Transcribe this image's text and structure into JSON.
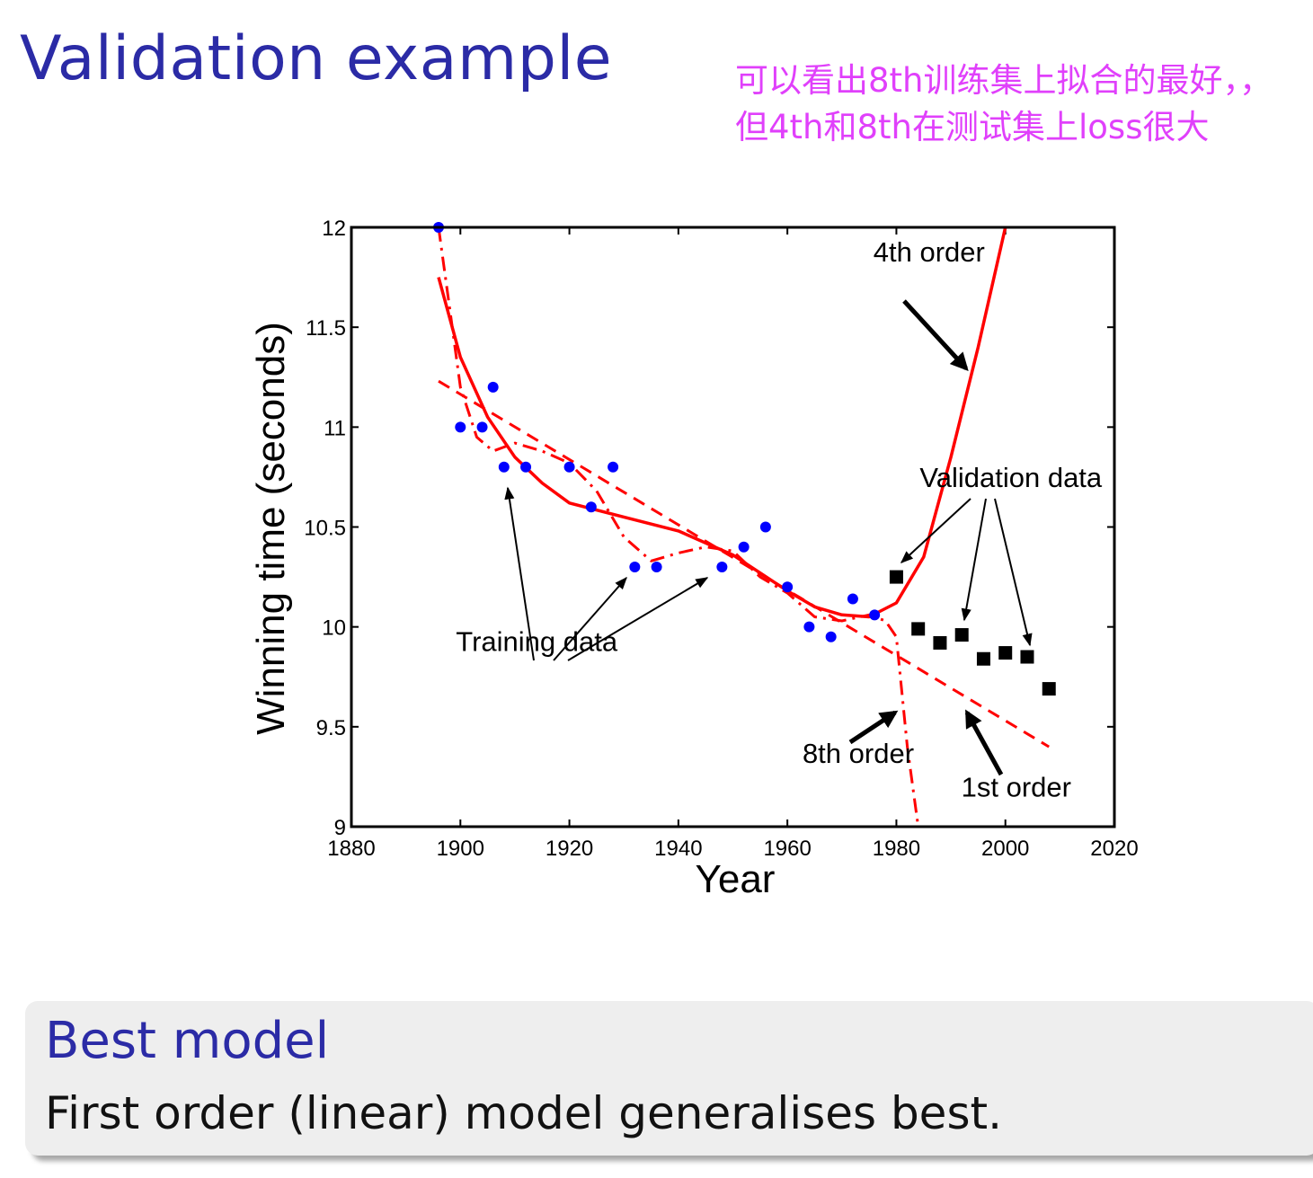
{
  "slide": {
    "title": "Validation example",
    "annotation": "可以看出8th训练集上拟合的最好，，但4th和8th在测试集上loss很大"
  },
  "chart_data": {
    "type": "scatter",
    "xlabel": "Year",
    "ylabel": "Winning time (seconds)",
    "xlim": [
      1880,
      2020
    ],
    "ylim": [
      9,
      12
    ],
    "xticks": [
      1880,
      1900,
      1920,
      1940,
      1960,
      1980,
      2000,
      2020
    ],
    "yticks": [
      9,
      9.5,
      10,
      10.5,
      11,
      11.5,
      12
    ],
    "xtick_labels": [
      "1880",
      "1900",
      "1920",
      "1940",
      "1960",
      "1980",
      "2000",
      "2020"
    ],
    "ytick_labels": [
      "9",
      "9.5",
      "10",
      "10.5",
      "11",
      "11.5",
      "12"
    ],
    "grid": false,
    "colors": {
      "training": "#0000ff",
      "validation": "#000000",
      "fit": "#ff0000"
    },
    "training_data": [
      {
        "x": 1896,
        "y": 12.0
      },
      {
        "x": 1900,
        "y": 11.0
      },
      {
        "x": 1904,
        "y": 11.0
      },
      {
        "x": 1906,
        "y": 11.2
      },
      {
        "x": 1908,
        "y": 10.8
      },
      {
        "x": 1912,
        "y": 10.8
      },
      {
        "x": 1920,
        "y": 10.8
      },
      {
        "x": 1924,
        "y": 10.6
      },
      {
        "x": 1928,
        "y": 10.8
      },
      {
        "x": 1932,
        "y": 10.3
      },
      {
        "x": 1936,
        "y": 10.3
      },
      {
        "x": 1948,
        "y": 10.3
      },
      {
        "x": 1952,
        "y": 10.4
      },
      {
        "x": 1956,
        "y": 10.5
      },
      {
        "x": 1960,
        "y": 10.2
      },
      {
        "x": 1964,
        "y": 10.0
      },
      {
        "x": 1968,
        "y": 9.95
      },
      {
        "x": 1972,
        "y": 10.14
      },
      {
        "x": 1976,
        "y": 10.06
      }
    ],
    "validation_data": [
      {
        "x": 1980,
        "y": 10.25
      },
      {
        "x": 1984,
        "y": 9.99
      },
      {
        "x": 1988,
        "y": 9.92
      },
      {
        "x": 1992,
        "y": 9.96
      },
      {
        "x": 1996,
        "y": 9.84
      },
      {
        "x": 2000,
        "y": 9.87
      },
      {
        "x": 2004,
        "y": 9.85
      },
      {
        "x": 2008,
        "y": 9.69
      }
    ],
    "fits": [
      {
        "name": "1st order",
        "style": "dashed",
        "x": [
          1896,
          2008
        ],
        "y": [
          11.23,
          9.4
        ]
      },
      {
        "name": "4th order",
        "style": "solid",
        "x": [
          1896,
          1900,
          1905,
          1910,
          1915,
          1920,
          1930,
          1940,
          1950,
          1960,
          1965,
          1970,
          1975,
          1980,
          1985,
          1990,
          1995,
          2000
        ],
        "y": [
          11.75,
          11.35,
          11.05,
          10.85,
          10.72,
          10.62,
          10.55,
          10.48,
          10.36,
          10.18,
          10.1,
          10.06,
          10.05,
          10.12,
          10.35,
          10.85,
          11.4,
          12.0
        ]
      },
      {
        "name": "8th order",
        "style": "dashdot",
        "x": [
          1896,
          1898,
          1900,
          1903,
          1906,
          1910,
          1915,
          1920,
          1925,
          1930,
          1935,
          1940,
          1945,
          1950,
          1955,
          1960,
          1965,
          1970,
          1975,
          1978,
          1980,
          1982,
          1984
        ],
        "y": [
          12.0,
          11.6,
          11.2,
          10.95,
          10.88,
          10.92,
          10.88,
          10.82,
          10.68,
          10.45,
          10.33,
          10.37,
          10.4,
          10.38,
          10.25,
          10.17,
          10.05,
          10.03,
          10.06,
          10.03,
          9.95,
          9.4,
          9.0
        ]
      }
    ],
    "annotations": [
      {
        "text": "4th order",
        "x": 1986,
        "y": 11.83
      },
      {
        "text": "Validation data",
        "x": 2001,
        "y": 10.7
      },
      {
        "text": "Training data",
        "x": 1914,
        "y": 9.88
      },
      {
        "text": "8th order",
        "x": 1973,
        "y": 9.32
      },
      {
        "text": "1st order",
        "x": 2002,
        "y": 9.15
      }
    ]
  },
  "block": {
    "title": "Best model",
    "body": "First order (linear) model generalises best."
  }
}
